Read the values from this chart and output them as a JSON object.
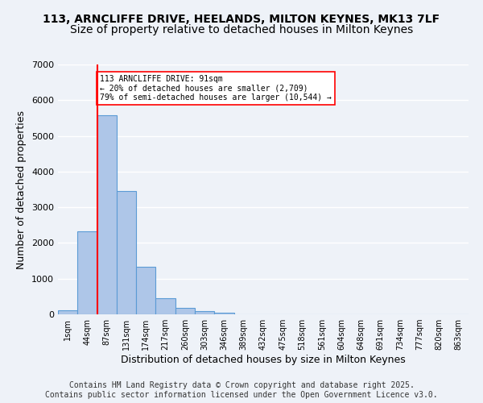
{
  "title1": "113, ARNCLIFFE DRIVE, HEELANDS, MILTON KEYNES, MK13 7LF",
  "title2": "Size of property relative to detached houses in Milton Keynes",
  "xlabel": "Distribution of detached houses by size in Milton Keynes",
  "ylabel": "Number of detached properties",
  "footer": "Contains HM Land Registry data © Crown copyright and database right 2025.\nContains public sector information licensed under the Open Government Licence v3.0.",
  "bin_labels": [
    "1sqm",
    "44sqm",
    "87sqm",
    "131sqm",
    "174sqm",
    "217sqm",
    "260sqm",
    "303sqm",
    "346sqm",
    "389sqm",
    "432sqm",
    "475sqm",
    "518sqm",
    "561sqm",
    "604sqm",
    "648sqm",
    "691sqm",
    "734sqm",
    "777sqm",
    "820sqm",
    "863sqm"
  ],
  "bar_values": [
    120,
    2320,
    5580,
    3450,
    1340,
    460,
    175,
    90,
    55,
    0,
    0,
    0,
    0,
    0,
    0,
    0,
    0,
    0,
    0,
    0,
    0
  ],
  "bar_color": "#aec6e8",
  "bar_edge_color": "#5b9bd5",
  "vline_x": 2,
  "vline_color": "red",
  "annotation_text": "113 ARNCLIFFE DRIVE: 91sqm\n← 20% of detached houses are smaller (2,709)\n79% of semi-detached houses are larger (10,544) →",
  "annotation_box_color": "white",
  "annotation_box_edge": "red",
  "ylim": [
    0,
    7000
  ],
  "yticks": [
    0,
    1000,
    2000,
    3000,
    4000,
    5000,
    6000,
    7000
  ],
  "bg_color": "#eef2f8",
  "plot_bg_color": "#eef2f8",
  "grid_color": "white",
  "title1_fontsize": 10,
  "title2_fontsize": 10,
  "xlabel_fontsize": 9,
  "ylabel_fontsize": 9,
  "footer_fontsize": 7
}
